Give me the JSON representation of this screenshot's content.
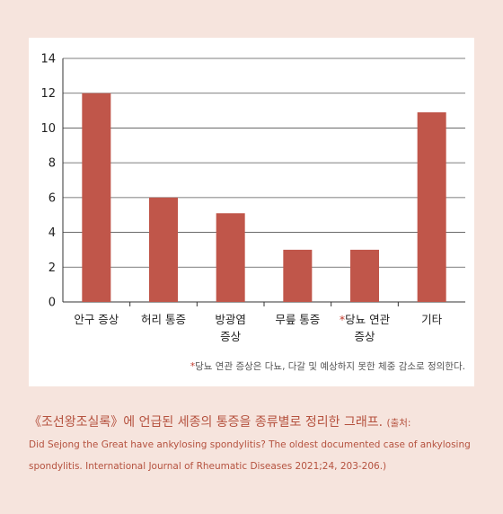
{
  "chart_data": {
    "type": "bar",
    "categories": [
      {
        "marker": "",
        "lines": [
          "안구 증상"
        ]
      },
      {
        "marker": "",
        "lines": [
          "허리 통증"
        ]
      },
      {
        "marker": "",
        "lines": [
          "방광염",
          "증상"
        ]
      },
      {
        "marker": "",
        "lines": [
          "무릎 통증"
        ]
      },
      {
        "marker": "*",
        "lines": [
          "당뇨 연관",
          "증상"
        ]
      },
      {
        "marker": "",
        "lines": [
          "기타"
        ]
      }
    ],
    "values": [
      12,
      6,
      5.1,
      3,
      3,
      10.9
    ],
    "yticks": [
      "0",
      "2",
      "4",
      "6",
      "8",
      "10",
      "12",
      "14"
    ],
    "ylim": [
      0,
      14
    ],
    "grid": true,
    "bar_color": "#c0564a",
    "title": "",
    "xlabel": "",
    "ylabel": ""
  },
  "footnote": {
    "marker": "*",
    "text": "당뇨 연관 증상은 다뇨, 다갈 및 예상하지 못한 체중 감소로 정의한다."
  },
  "caption": {
    "main": "《조선왕조실록》에 언급된 세종의 통증을 종류별로 정리한 그래프.",
    "source_open": "(출처:",
    "source_line1": "Did Sejong the Great have ankylosing spondylitis? The oldest documented case of ankylosing",
    "source_line2": "spondylitis. International Journal of Rheumatic Diseases 2021;24, 203-206.)"
  }
}
